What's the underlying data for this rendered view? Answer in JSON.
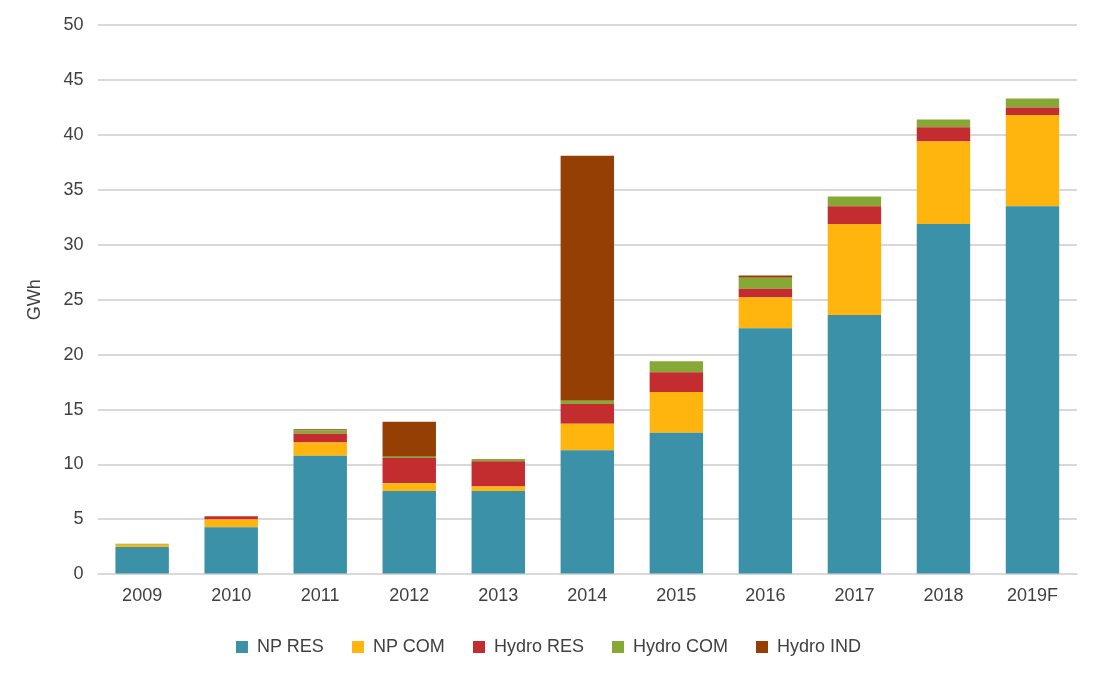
{
  "chart_data": {
    "type": "bar",
    "stacked": true,
    "ylabel": "GWh",
    "categories": [
      "2009",
      "2010",
      "2011",
      "2012",
      "2013",
      "2014",
      "2015",
      "2016",
      "2017",
      "2018",
      "2019F"
    ],
    "series": [
      {
        "name": "NP RES",
        "color": "#3a91a8",
        "values": [
          2.5,
          4.3,
          10.8,
          7.6,
          7.6,
          11.3,
          12.9,
          22.4,
          23.6,
          31.9,
          33.5
        ]
      },
      {
        "name": "NP COM",
        "color": "#ffb50e",
        "values": [
          0.2,
          0.7,
          1.2,
          0.7,
          0.4,
          2.4,
          3.7,
          2.8,
          8.3,
          7.5,
          8.3
        ]
      },
      {
        "name": "Hydro RES",
        "color": "#c42d2f",
        "values": [
          0,
          0.3,
          0.8,
          2.3,
          2.3,
          1.8,
          1.8,
          0.8,
          1.6,
          1.3,
          0.7
        ]
      },
      {
        "name": "Hydro COM",
        "color": "#86a936",
        "values": [
          0.1,
          0,
          0.3,
          0.1,
          0.2,
          0.3,
          1.0,
          1.0,
          0.9,
          0.7,
          0.8
        ]
      },
      {
        "name": "Hydro IND",
        "color": "#953f04",
        "values": [
          0,
          0,
          0.1,
          3.2,
          0,
          22.3,
          0,
          0.2,
          0,
          0,
          0
        ]
      }
    ],
    "ylim": [
      0,
      50
    ],
    "yticks": [
      0,
      5,
      10,
      15,
      20,
      25,
      30,
      35,
      40,
      45,
      50
    ],
    "grid": "y",
    "legend": "bottom"
  }
}
